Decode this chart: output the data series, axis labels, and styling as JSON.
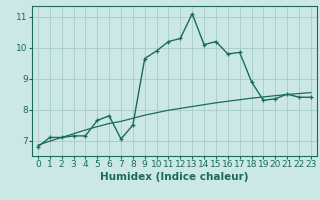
{
  "title": "",
  "xlabel": "Humidex (Indice chaleur)",
  "bg_color": "#cce8e4",
  "grid_color": "#a0c8c0",
  "line_color": "#1a6b5a",
  "x_data": [
    0,
    1,
    2,
    3,
    4,
    5,
    6,
    7,
    8,
    9,
    10,
    11,
    12,
    13,
    14,
    15,
    16,
    17,
    18,
    19,
    20,
    21,
    22,
    23
  ],
  "y_curve": [
    6.8,
    7.1,
    7.1,
    7.15,
    7.15,
    7.65,
    7.8,
    7.05,
    7.5,
    9.65,
    9.9,
    10.2,
    10.3,
    11.1,
    10.1,
    10.2,
    9.8,
    9.85,
    8.9,
    8.3,
    8.35,
    8.5,
    8.4,
    8.4
  ],
  "y_line": [
    6.85,
    6.98,
    7.1,
    7.22,
    7.34,
    7.45,
    7.55,
    7.62,
    7.72,
    7.82,
    7.9,
    7.98,
    8.04,
    8.1,
    8.16,
    8.22,
    8.27,
    8.32,
    8.37,
    8.41,
    8.45,
    8.49,
    8.52,
    8.55
  ],
  "ylim": [
    6.5,
    11.35
  ],
  "xlim": [
    -0.5,
    23.5
  ],
  "yticks": [
    7,
    8,
    9,
    10,
    11
  ],
  "xticks": [
    0,
    1,
    2,
    3,
    4,
    5,
    6,
    7,
    8,
    9,
    10,
    11,
    12,
    13,
    14,
    15,
    16,
    17,
    18,
    19,
    20,
    21,
    22,
    23
  ],
  "tick_fontsize": 6.5,
  "label_fontsize": 7.5
}
